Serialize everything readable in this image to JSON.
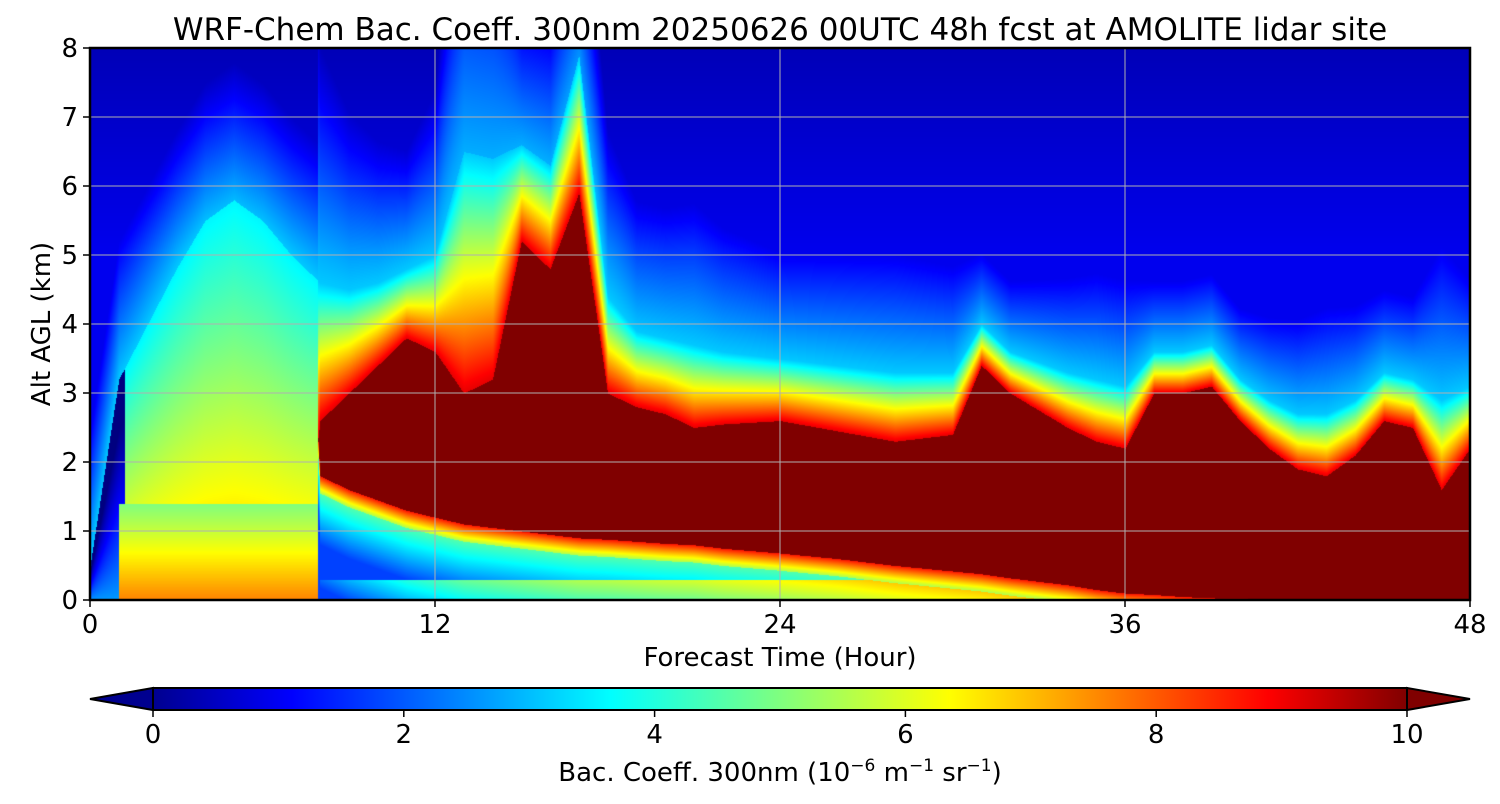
{
  "chart_data": {
    "type": "heatmap",
    "title": "WRF-Chem Bac. Coeff. 300nm  20250626 00UTC 48h fcst at AMOLITE lidar site",
    "xlabel": "Forecast Time (Hour)",
    "ylabel": "Alt AGL (km)",
    "xlim": [
      0,
      48
    ],
    "ylim": [
      0,
      8
    ],
    "x_ticks": [
      "0",
      "12",
      "24",
      "36",
      "48"
    ],
    "y_ticks": [
      "0",
      "1",
      "2",
      "3",
      "4",
      "5",
      "6",
      "7",
      "8"
    ],
    "grid": true,
    "colorbar": {
      "label_main": "Bac. Coeff. 300nm  (10",
      "label_exp1": "−6",
      "label_mid": " m",
      "label_exp2": "−1",
      "label_mid2": " sr",
      "label_exp3": "−1",
      "label_end": ")",
      "ticks": [
        "0",
        "2",
        "4",
        "6",
        "8",
        "10"
      ],
      "range": [
        0,
        10
      ],
      "colormap": "jet",
      "extend": "both",
      "under_color": "#00008f",
      "over_color": "#800000"
    },
    "field_profiles": {
      "times": [
        0,
        1,
        2,
        3,
        4,
        5,
        6,
        7,
        8,
        9,
        10,
        11,
        12,
        13,
        14,
        15,
        16,
        17,
        18,
        19,
        20,
        21,
        22,
        24,
        26,
        28,
        30,
        31,
        32,
        34,
        35,
        36,
        37,
        38,
        39,
        40,
        41,
        42,
        43,
        44,
        45,
        46,
        47,
        48
      ],
      "core_bottom_km": [
        9,
        9,
        9,
        9,
        9,
        9,
        9,
        9,
        1.8,
        1.6,
        1.45,
        1.3,
        1.2,
        1.1,
        1.05,
        1.0,
        0.95,
        0.9,
        0.88,
        0.85,
        0.82,
        0.8,
        0.75,
        0.68,
        0.6,
        0.5,
        0.42,
        0.38,
        0.32,
        0.22,
        0.15,
        0.1,
        0.08,
        0.05,
        0.03,
        0.02,
        0.0,
        0.0,
        0.0,
        0.0,
        0.0,
        0.0,
        0.0,
        0.0
      ],
      "core_top_km": [
        -1,
        -1,
        -1,
        -1,
        -1,
        -1,
        -1,
        -1,
        2.6,
        3.0,
        3.4,
        3.8,
        3.6,
        3.0,
        3.2,
        5.2,
        4.8,
        5.9,
        3.0,
        2.8,
        2.7,
        2.5,
        2.55,
        2.6,
        2.45,
        2.3,
        2.4,
        3.4,
        3.0,
        2.5,
        2.3,
        2.2,
        3.0,
        3.0,
        3.1,
        2.6,
        2.2,
        1.9,
        1.8,
        2.1,
        2.6,
        2.5,
        1.6,
        2.2
      ],
      "aerosol_top_km": [
        0.5,
        3.2,
        4.0,
        4.8,
        5.5,
        5.8,
        5.5,
        5.0,
        4.6,
        4.5,
        4.6,
        4.8,
        5.0,
        6.5,
        6.4,
        6.6,
        6.3,
        7.9,
        4.4,
        3.9,
        3.8,
        3.7,
        3.6,
        3.5,
        3.4,
        3.3,
        3.3,
        4.0,
        3.6,
        3.3,
        3.2,
        3.1,
        3.6,
        3.6,
        3.7,
        3.2,
        2.9,
        2.7,
        2.7,
        2.9,
        3.3,
        3.2,
        2.9,
        3.1
      ]
    }
  }
}
